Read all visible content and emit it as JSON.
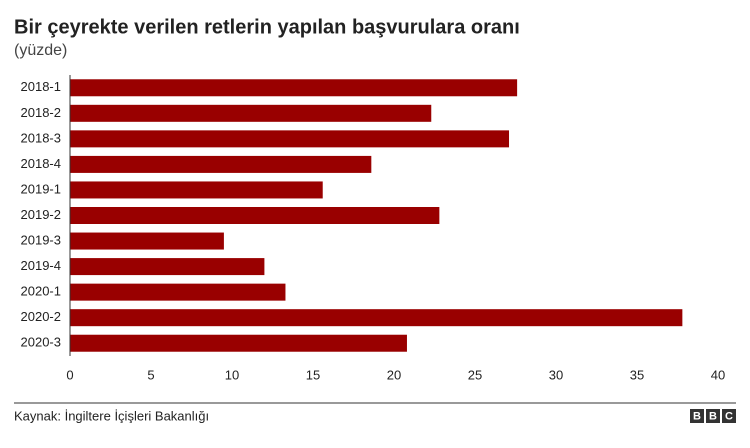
{
  "chart_data": {
    "type": "bar",
    "orientation": "horizontal",
    "title": "Bir çeyrekte verilen retlerin yapılan başvurulara oranı",
    "subtitle": "(yüzde)",
    "categories": [
      "2018-1",
      "2018-2",
      "2018-3",
      "2018-4",
      "2019-1",
      "2019-2",
      "2019-3",
      "2019-4",
      "2020-1",
      "2020-2",
      "2020-3"
    ],
    "values": [
      27.6,
      22.3,
      27.1,
      18.6,
      15.6,
      22.8,
      9.5,
      12.0,
      13.3,
      37.8,
      20.8
    ],
    "color": "#990000",
    "xlim": [
      0,
      40
    ],
    "xticks": [
      0,
      5,
      10,
      15,
      20,
      25,
      30,
      35,
      40
    ],
    "grid": false,
    "source": "Kaynak: İngiltere İçişleri Bakanlığı",
    "logo": [
      "B",
      "B",
      "C"
    ]
  }
}
